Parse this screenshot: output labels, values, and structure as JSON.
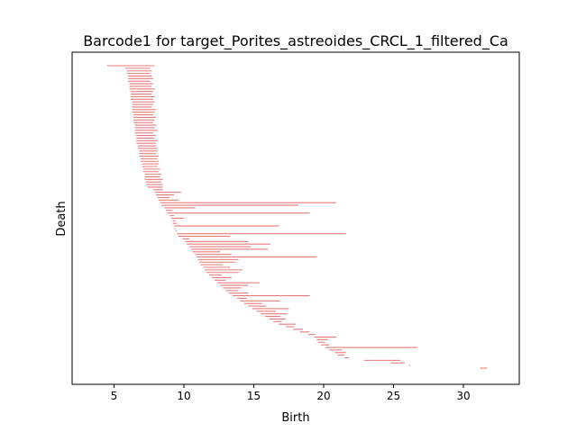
{
  "chart_data": {
    "type": "bar",
    "title": "Barcode1 for target_Porites_astreoides_CRCL_1_filtered_Ca",
    "xlabel": "Birth",
    "ylabel": "Death",
    "xlim": [
      2,
      34
    ],
    "x_ticks": [
      5,
      10,
      15,
      20,
      25,
      30
    ],
    "y_ticks": [],
    "color": "#e87b7b",
    "intervals": [
      [
        4.5,
        7.9
      ],
      [
        5.8,
        7.6
      ],
      [
        5.9,
        7.7
      ],
      [
        5.9,
        7.6
      ],
      [
        6.0,
        7.7
      ],
      [
        6.0,
        7.8
      ],
      [
        6.0,
        7.6
      ],
      [
        6.1,
        7.8
      ],
      [
        6.1,
        7.7
      ],
      [
        6.1,
        7.9
      ],
      [
        6.2,
        7.8
      ],
      [
        6.2,
        7.7
      ],
      [
        6.2,
        7.9
      ],
      [
        6.2,
        7.8
      ],
      [
        6.3,
        7.9
      ],
      [
        6.3,
        7.8
      ],
      [
        6.3,
        7.7
      ],
      [
        6.3,
        8.0
      ],
      [
        6.3,
        7.9
      ],
      [
        6.4,
        7.8
      ],
      [
        6.4,
        8.0
      ],
      [
        6.4,
        7.9
      ],
      [
        6.4,
        7.8
      ],
      [
        6.5,
        8.0
      ],
      [
        6.5,
        7.9
      ],
      [
        6.5,
        8.1
      ],
      [
        6.5,
        7.8
      ],
      [
        6.6,
        8.0
      ],
      [
        6.6,
        7.9
      ],
      [
        6.6,
        8.1
      ],
      [
        6.6,
        8.0
      ],
      [
        6.7,
        8.0
      ],
      [
        6.7,
        8.1
      ],
      [
        6.8,
        8.1
      ],
      [
        6.8,
        8.0
      ],
      [
        6.8,
        8.2
      ],
      [
        6.9,
        8.1
      ],
      [
        6.9,
        8.2
      ],
      [
        7.0,
        8.2
      ],
      [
        7.0,
        8.1
      ],
      [
        7.1,
        8.3
      ],
      [
        7.1,
        8.2
      ],
      [
        7.2,
        8.4
      ],
      [
        7.2,
        8.3
      ],
      [
        7.2,
        8.5
      ],
      [
        7.3,
        8.4
      ],
      [
        7.3,
        8.5
      ],
      [
        7.4,
        8.5
      ],
      [
        7.8,
        8.5
      ],
      [
        7.9,
        9.8
      ],
      [
        8.0,
        9.3
      ],
      [
        8.1,
        9.0
      ],
      [
        8.2,
        9.6
      ],
      [
        8.3,
        20.9
      ],
      [
        8.4,
        18.2
      ],
      [
        8.6,
        10.8
      ],
      [
        8.7,
        9.2
      ],
      [
        8.8,
        19.0
      ],
      [
        9.0,
        9.3
      ],
      [
        9.1,
        10.0
      ],
      [
        9.2,
        9.4
      ],
      [
        9.2,
        9.5
      ],
      [
        9.3,
        16.8
      ],
      [
        9.3,
        9.4
      ],
      [
        9.4,
        9.5
      ],
      [
        9.5,
        21.6
      ],
      [
        9.6,
        13.3
      ],
      [
        9.9,
        10.4
      ],
      [
        10.1,
        14.6
      ],
      [
        10.2,
        16.2
      ],
      [
        10.4,
        14.8
      ],
      [
        10.5,
        16.0
      ],
      [
        10.6,
        12.6
      ],
      [
        10.8,
        13.4
      ],
      [
        10.9,
        19.5
      ],
      [
        11.0,
        13.9
      ],
      [
        11.1,
        13.7
      ],
      [
        11.2,
        12.8
      ],
      [
        11.4,
        13.3
      ],
      [
        11.5,
        14.2
      ],
      [
        11.6,
        13.9
      ],
      [
        11.8,
        12.7
      ],
      [
        12.0,
        13.4
      ],
      [
        12.2,
        13.0
      ],
      [
        12.4,
        15.4
      ],
      [
        12.6,
        14.6
      ],
      [
        12.8,
        14.1
      ],
      [
        13.0,
        13.9
      ],
      [
        13.2,
        14.6
      ],
      [
        13.5,
        19.0
      ],
      [
        13.8,
        14.5
      ],
      [
        14.0,
        16.9
      ],
      [
        14.3,
        15.6
      ],
      [
        14.6,
        15.9
      ],
      [
        14.9,
        17.5
      ],
      [
        15.2,
        16.6
      ],
      [
        15.5,
        17.4
      ],
      [
        15.8,
        16.9
      ],
      [
        16.1,
        17.3
      ],
      [
        16.4,
        17.0
      ],
      [
        16.8,
        18.0
      ],
      [
        17.3,
        17.9
      ],
      [
        17.8,
        18.5
      ],
      [
        18.3,
        19.0
      ],
      [
        18.9,
        19.4
      ],
      [
        19.3,
        20.9
      ],
      [
        19.5,
        20.3
      ],
      [
        19.6,
        20.1
      ],
      [
        19.8,
        20.4
      ],
      [
        20.1,
        26.7
      ],
      [
        20.4,
        21.3
      ],
      [
        20.8,
        21.6
      ],
      [
        21.0,
        21.5
      ],
      [
        21.5,
        21.8
      ],
      [
        22.9,
        25.5
      ],
      [
        24.8,
        25.8
      ],
      [
        26.1,
        26.2
      ],
      [
        31.2,
        31.7
      ]
    ]
  }
}
